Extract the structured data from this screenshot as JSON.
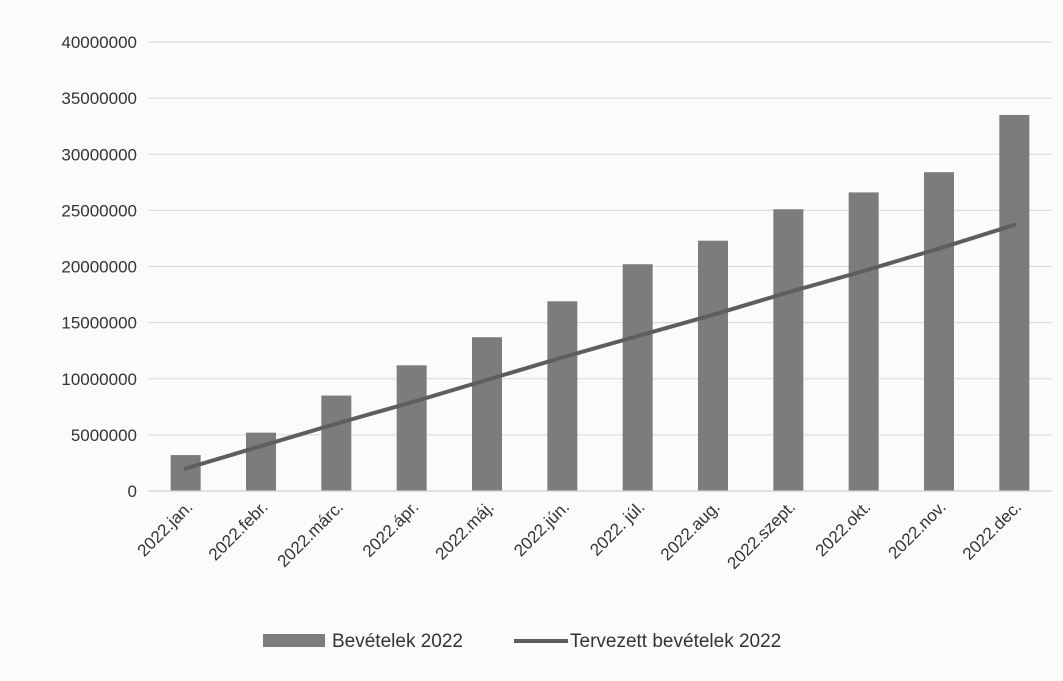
{
  "chart_data": {
    "type": "bar",
    "categories": [
      "2022.jan.",
      "2022.febr.",
      "2022.márc.",
      "2022.ápr.",
      "2022.máj.",
      "2022.jún.",
      "2022. júl.",
      "2022.aug.",
      "2022.szept.",
      "2022.okt.",
      "2022.nov.",
      "2022.dec."
    ],
    "series": [
      {
        "name": "Bevételek 2022",
        "type": "bar",
        "color": "#7c7c7c",
        "values": [
          3200000,
          5200000,
          8500000,
          11200000,
          13700000,
          16900000,
          20200000,
          22300000,
          25100000,
          26600000,
          28400000,
          33500000
        ]
      },
      {
        "name": "Tervezett bevételek 2022",
        "type": "line",
        "color": "#5e5e5e",
        "values": [
          2000000,
          4000000,
          6000000,
          7900000,
          9900000,
          11900000,
          13800000,
          15700000,
          17700000,
          19600000,
          21600000,
          23700000
        ]
      }
    ],
    "yticks": [
      "0",
      "5000000",
      "10000000",
      "15000000",
      "20000000",
      "25000000",
      "30000000",
      "35000000",
      "40000000"
    ],
    "ylim": [
      0,
      40000000
    ],
    "grid": true,
    "legend_position": "bottom"
  }
}
